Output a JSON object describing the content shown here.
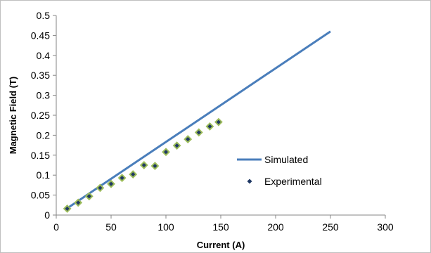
{
  "chart_data": {
    "type": "scatter",
    "title": "",
    "xlabel": "Current (A)",
    "ylabel": "Magnetic Field (T)",
    "xlim": [
      0,
      300
    ],
    "ylim": [
      0,
      0.5
    ],
    "xticks": [
      0,
      50,
      100,
      150,
      200,
      250,
      300
    ],
    "yticks": [
      0,
      0.05,
      0.1,
      0.15,
      0.2,
      0.25,
      0.3,
      0.35,
      0.4,
      0.45,
      0.5
    ],
    "ytick_labels": [
      "0",
      "0.05",
      "0.1",
      "0.15",
      "0.2",
      "0.25",
      "0.3",
      "0.35",
      "0.4",
      "0.45",
      "0.5"
    ],
    "grid": false,
    "legend_position": "right-center",
    "series": [
      {
        "name": "Simulated",
        "kind": "line",
        "color": "#4a7ebb",
        "x": [
          10,
          250
        ],
        "y": [
          0.017,
          0.46
        ]
      },
      {
        "name": "Experimental",
        "kind": "marker",
        "marker": "diamond",
        "color": "#1f3864",
        "outline": "#9bbb59",
        "x": [
          10,
          20,
          30,
          40,
          50,
          60,
          70,
          80,
          90,
          100,
          110,
          120,
          130,
          140,
          148
        ],
        "y": [
          0.016,
          0.031,
          0.047,
          0.068,
          0.078,
          0.093,
          0.102,
          0.125,
          0.123,
          0.158,
          0.174,
          0.19,
          0.207,
          0.222,
          0.233
        ]
      }
    ]
  }
}
